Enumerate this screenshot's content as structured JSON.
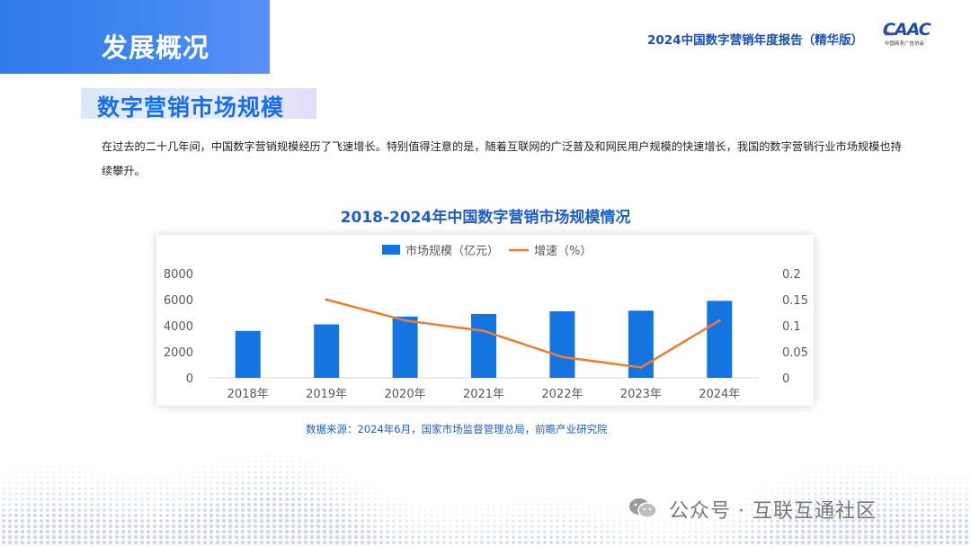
{
  "header": {
    "section_label": "发展概况",
    "report_title": "2024中国数字营销年度报告（精华版）",
    "logo_text": "CAAC",
    "logo_org": "中国商务广告协会"
  },
  "section": {
    "title": "数字营销市场规模",
    "intro": "在过去的二十几年间，中国数字营销规模经历了飞速增长。特别值得注意的是，随着互联网的广泛普及和网民用户规模的快速增长，我国的数字营销行业市场规模也持续攀升。"
  },
  "chart_data": {
    "type": "bar",
    "title": "2018-2024年中国数字营销市场规模情况",
    "categories": [
      "2018年",
      "2019年",
      "2020年",
      "2021年",
      "2022年",
      "2023年",
      "2024年"
    ],
    "series": [
      {
        "name": "市场规模（亿元）",
        "type": "bar",
        "axis": "left",
        "color": "#1475e0",
        "values": [
          3600,
          4100,
          4700,
          4900,
          5100,
          5150,
          5900
        ]
      },
      {
        "name": "增速（%）",
        "type": "line",
        "axis": "right",
        "color": "#ed7d31",
        "values": [
          null,
          0.15,
          0.11,
          0.09,
          0.04,
          0.02,
          0.11
        ]
      }
    ],
    "ylim": [
      0,
      8000
    ],
    "y_ticks": [
      "0",
      "2000",
      "4000",
      "6000",
      "8000"
    ],
    "y2lim": [
      0,
      0.2
    ],
    "y2_ticks": [
      "0",
      "0.05",
      "0.1",
      "0.15",
      "0.2"
    ],
    "legend_position": "top-center",
    "grid": false
  },
  "source": "数据来源：2024年6月，国家市场监督管理总局，前瞻产业研究院",
  "watermark": {
    "wechat": "公众号 · 互联互通社区",
    "wechat_icon": "wechat-icon"
  }
}
